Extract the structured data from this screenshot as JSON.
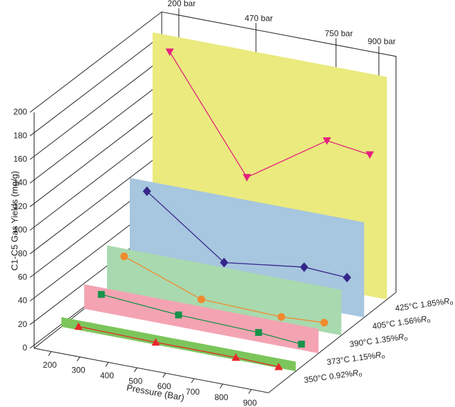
{
  "chart_data": {
    "type": "line3d",
    "x_axis_label": "Pressure (Bar)",
    "y_axis_label": "C1-C5 Gas Yields (mg/g)",
    "x": [
      200,
      470,
      750,
      900
    ],
    "top_labels": [
      "200 bar",
      "470 bar",
      "750 bar",
      "900 bar"
    ],
    "xlim": [
      140,
      960
    ],
    "xticks": [
      200,
      300,
      400,
      500,
      600,
      700,
      800,
      900
    ],
    "ylim": [
      0,
      200
    ],
    "yticks": [
      0,
      20,
      40,
      60,
      80,
      100,
      120,
      140,
      160,
      180,
      200
    ],
    "series": [
      {
        "name": "350°C 0.92%Ro",
        "color": "#e8252a",
        "marker": "triangle-up",
        "plane_color": "#7cc55a",
        "values": [
          3,
          2,
          2,
          1
        ]
      },
      {
        "name": "373°C 1.15%Ro",
        "color": "#17934a",
        "marker": "square",
        "plane_color": "#f4a3b3",
        "values": [
          15,
          10,
          8,
          5
        ]
      },
      {
        "name": "390°C 1.35%Ro",
        "color": "#f08a2e",
        "marker": "circle",
        "plane_color": "#a9d9ae",
        "values": [
          32,
          8,
          6,
          8
        ]
      },
      {
        "name": "405°C 1.56%Ro",
        "color": "#35268a",
        "marker": "diamond",
        "plane_color": "#a7c6df",
        "values": [
          72,
          24,
          33,
          31
        ]
      },
      {
        "name": "425°C 1.85%Ro",
        "color": "#e5207d",
        "marker": "triangle-down",
        "plane_color": "#eaea7e",
        "values": [
          175,
          81,
          125,
          120
        ]
      }
    ]
  }
}
